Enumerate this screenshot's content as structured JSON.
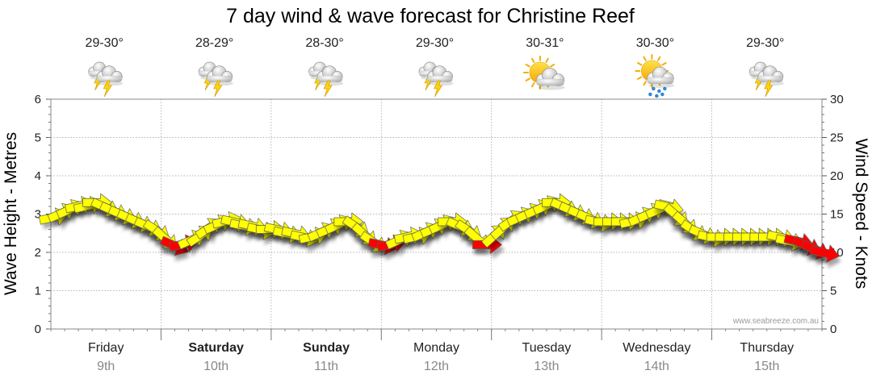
{
  "chart_data": {
    "type": "line",
    "title": "7 day wind & wave forecast for Christine Reef",
    "ylabel_left": "Wave Height - Metres",
    "ylabel_right": "Wind Speed - Knots",
    "ylim_left": [
      0,
      6
    ],
    "ylim_right": [
      0,
      30
    ],
    "yticks_left": [
      "0",
      "1",
      "2",
      "3",
      "4",
      "5",
      "6"
    ],
    "yticks_right": [
      "0",
      "5",
      "10",
      "15",
      "20",
      "25",
      "30"
    ],
    "watermark": "www.seabreeze.com.au",
    "days": [
      {
        "day": "Friday",
        "date": "9th",
        "temp": "29-30°",
        "icon": "storm-icon",
        "bold": false
      },
      {
        "day": "Saturday",
        "date": "10th",
        "temp": "28-29°",
        "icon": "storm-icon",
        "bold": true
      },
      {
        "day": "Sunday",
        "date": "11th",
        "temp": "28-30°",
        "icon": "storm-icon",
        "bold": true
      },
      {
        "day": "Monday",
        "date": "12th",
        "temp": "29-30°",
        "icon": "storm-icon",
        "bold": false
      },
      {
        "day": "Tuesday",
        "date": "13th",
        "temp": "30-31°",
        "icon": "sun-cloud-icon",
        "bold": false
      },
      {
        "day": "Wednesday",
        "date": "14th",
        "temp": "30-30°",
        "icon": "sun-rain-icon",
        "bold": false
      },
      {
        "day": "Thursday",
        "date": "15th",
        "temp": "29-30°",
        "icon": "storm-icon",
        "bold": false
      }
    ],
    "wind_color_low": "#ffff00",
    "wind_color_high": "#ff0000",
    "wind_knots": [
      15,
      15,
      15.5,
      16,
      16.5,
      17,
      16.5,
      16,
      16,
      15.5,
      15,
      14,
      13,
      12,
      11,
      11.5,
      12,
      13,
      14,
      14,
      13.5,
      14,
      14.5,
      14,
      13.5,
      14,
      14,
      13.5,
      13.5,
      13,
      13,
      13.5,
      14,
      14.5,
      14.5,
      14,
      13,
      12,
      11.5,
      11.5,
      12,
      12,
      12.5,
      13,
      13.5,
      14,
      14,
      13.5,
      13,
      12,
      11.5,
      12.5,
      13.5,
      14,
      15,
      15.5,
      16,
      16.5,
      16.5,
      16,
      15.5,
      15,
      14.5,
      14.5,
      14.5,
      14.5,
      14.5,
      14.5,
      15,
      15.5,
      16,
      16,
      15,
      14,
      13,
      12.5,
      12,
      12,
      12,
      12,
      12,
      12,
      12,
      12,
      12,
      12,
      11.5,
      11,
      10.5,
      10
    ],
    "wave_m": [
      2.9,
      3.0,
      3.1,
      3.2,
      3.2,
      3.3,
      3.2,
      3.1,
      3.0,
      2.9,
      2.8,
      2.7,
      2.6,
      2.4,
      2.2,
      2.2,
      2.3,
      2.4,
      2.6,
      2.7,
      2.8,
      2.8,
      2.7,
      2.7,
      2.6,
      2.6,
      2.6,
      2.5,
      2.5,
      2.4,
      2.4,
      2.5,
      2.6,
      2.7,
      2.8,
      2.7,
      2.5,
      2.3,
      2.2,
      2.2,
      2.3,
      2.4,
      2.4,
      2.5,
      2.6,
      2.7,
      2.8,
      2.7,
      2.6,
      2.4,
      2.2,
      2.4,
      2.6,
      2.8,
      2.9,
      3.0,
      3.1,
      3.2,
      3.3,
      3.2,
      3.1,
      3.0,
      2.9,
      2.8,
      2.8,
      2.8,
      2.8,
      2.8,
      2.9,
      3.0,
      3.1,
      3.2,
      3.0,
      2.8,
      2.6,
      2.5,
      2.4,
      2.4,
      2.4,
      2.4,
      2.4,
      2.4,
      2.4,
      2.4,
      2.4,
      2.3,
      2.3,
      2.2,
      2.1,
      2.0
    ]
  }
}
